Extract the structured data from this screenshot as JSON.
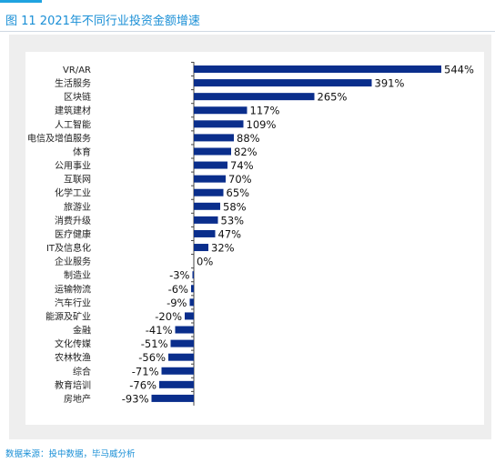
{
  "header": {
    "title": "图 11  2021年不同行业投资金额增速",
    "accent_color": "#1fa3e0",
    "title_color": "#1a8fd6"
  },
  "footer": {
    "source": "数据来源：投中数据，毕马威分析"
  },
  "chart_data": {
    "type": "bar",
    "orientation": "horizontal",
    "title": "",
    "xlabel": "",
    "ylabel": "",
    "value_suffix": "%",
    "bar_color": "#0a2e8c",
    "grid": false,
    "legend": "none",
    "xlim": [
      -100,
      600
    ],
    "categories": [
      "VR/AR",
      "生活服务",
      "区块链",
      "建筑建材",
      "人工智能",
      "电信及增值服务",
      "体育",
      "公用事业",
      "互联网",
      "化学工业",
      "旅游业",
      "消费升级",
      "医疗健康",
      "IT及信息化",
      "企业服务",
      "制造业",
      "运输物流",
      "汽车行业",
      "能源及矿业",
      "金融",
      "文化传媒",
      "农林牧渔",
      "综合",
      "教育培训",
      "房地产"
    ],
    "values": [
      544,
      391,
      265,
      117,
      109,
      88,
      82,
      74,
      70,
      65,
      58,
      53,
      47,
      32,
      0,
      -3,
      -6,
      -9,
      -20,
      -41,
      -51,
      -56,
      -71,
      -76,
      -93
    ],
    "data_labels": [
      "544%",
      "391%",
      "265%",
      "117%",
      "109%",
      "88%",
      "82%",
      "74%",
      "70%",
      "65%",
      "58%",
      "53%",
      "47%",
      "32%",
      "0%",
      "-3%",
      "-6%",
      "-9%",
      "-20%",
      "-41%",
      "-51%",
      "-56%",
      "-71%",
      "-76%",
      "-93%"
    ]
  }
}
